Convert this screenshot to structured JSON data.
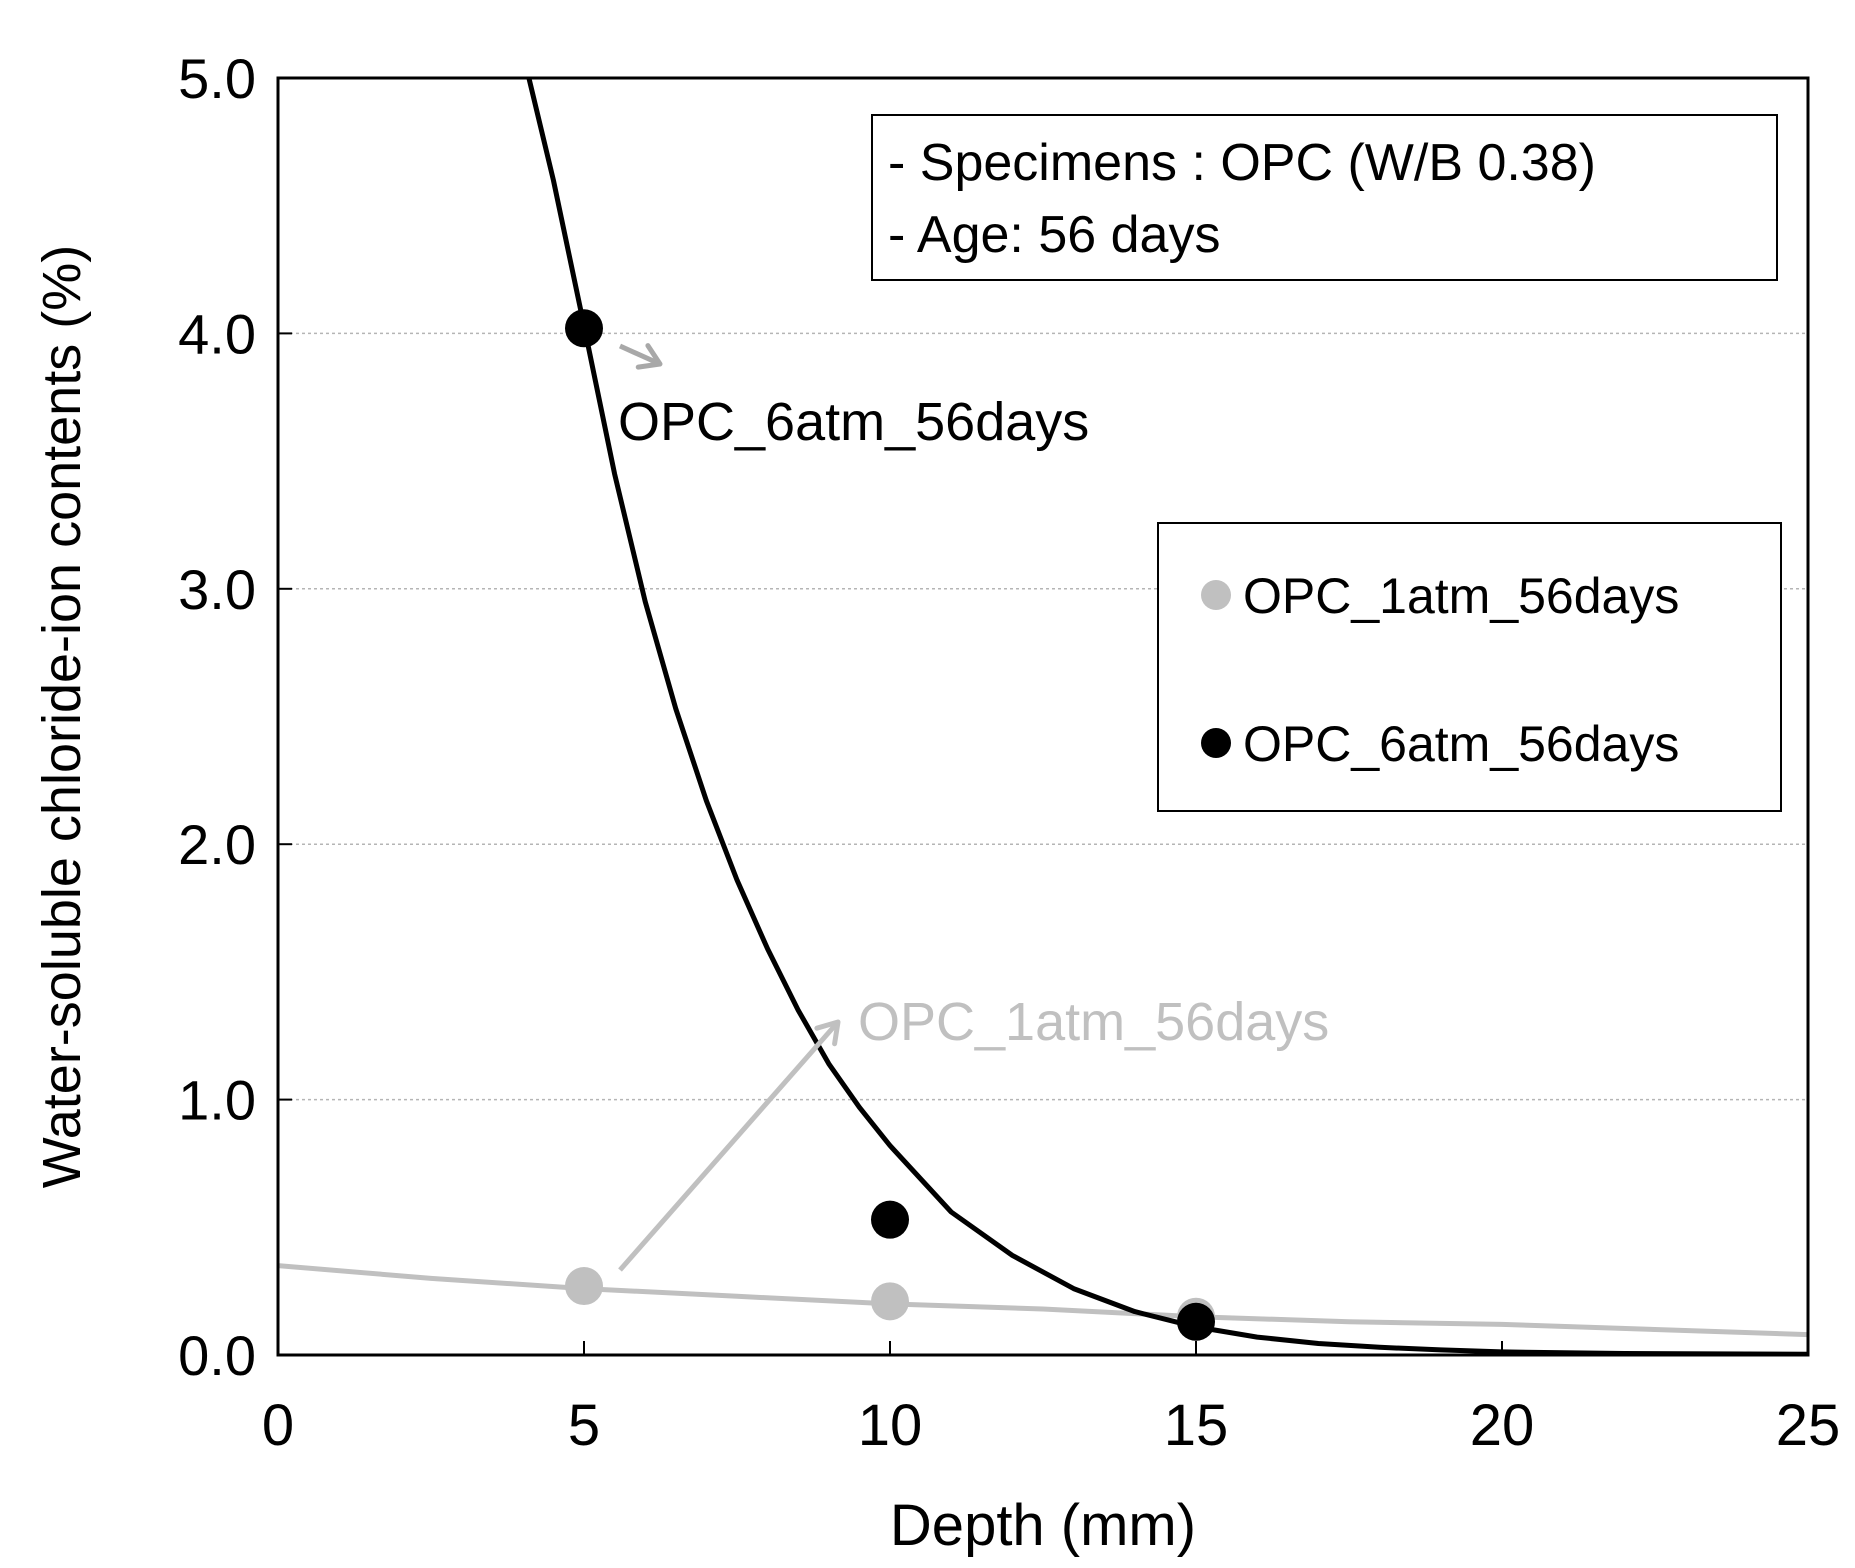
{
  "chart_data": {
    "type": "scatter",
    "xlabel": "Depth (mm)",
    "ylabel": "Water-soluble chloride-ion contents (%)",
    "xlim": [
      0,
      25
    ],
    "ylim": [
      0,
      5
    ],
    "xticks": [
      "0",
      "5",
      "10",
      "15",
      "20",
      "25"
    ],
    "yticks": [
      "0.0",
      "1.0",
      "2.0",
      "3.0",
      "4.0",
      "5.0"
    ],
    "grid": "horizontal dashed",
    "info_lines": [
      "- Specimens : OPC (W/B 0.38)",
      "- Age: 56 days"
    ],
    "legend_position": "right",
    "series": [
      {
        "name": "OPC_1atm_56days",
        "color": "#c0c0c0",
        "points": [
          [
            5,
            0.27
          ],
          [
            10,
            0.21
          ],
          [
            15,
            0.15
          ]
        ],
        "fit_curve": [
          [
            0,
            0.35
          ],
          [
            2.5,
            0.3
          ],
          [
            5,
            0.26
          ],
          [
            7.5,
            0.23
          ],
          [
            10,
            0.2
          ],
          [
            12.5,
            0.18
          ],
          [
            15,
            0.15
          ],
          [
            17.5,
            0.13
          ],
          [
            20,
            0.12
          ],
          [
            22.5,
            0.1
          ],
          [
            25,
            0.08
          ]
        ],
        "annotation": "OPC_1atm_56days"
      },
      {
        "name": "OPC_6atm_56days",
        "color": "#000000",
        "points": [
          [
            5,
            4.02
          ],
          [
            10,
            0.53
          ],
          [
            15,
            0.13
          ]
        ],
        "fit_curve": [
          [
            4.1,
            5.0
          ],
          [
            4.5,
            4.6
          ],
          [
            5,
            4.03
          ],
          [
            5.5,
            3.45
          ],
          [
            6,
            2.95
          ],
          [
            6.5,
            2.53
          ],
          [
            7,
            2.17
          ],
          [
            7.5,
            1.86
          ],
          [
            8,
            1.59
          ],
          [
            8.5,
            1.35
          ],
          [
            9,
            1.14
          ],
          [
            9.5,
            0.97
          ],
          [
            10,
            0.82
          ],
          [
            11,
            0.56
          ],
          [
            12,
            0.39
          ],
          [
            13,
            0.26
          ],
          [
            14,
            0.17
          ],
          [
            15,
            0.11
          ],
          [
            16,
            0.07
          ],
          [
            17,
            0.045
          ],
          [
            18,
            0.03
          ],
          [
            19,
            0.02
          ],
          [
            20,
            0.012
          ],
          [
            22,
            0.006
          ],
          [
            25,
            0.003
          ]
        ],
        "annotation": "OPC_6atm_56days"
      }
    ]
  }
}
